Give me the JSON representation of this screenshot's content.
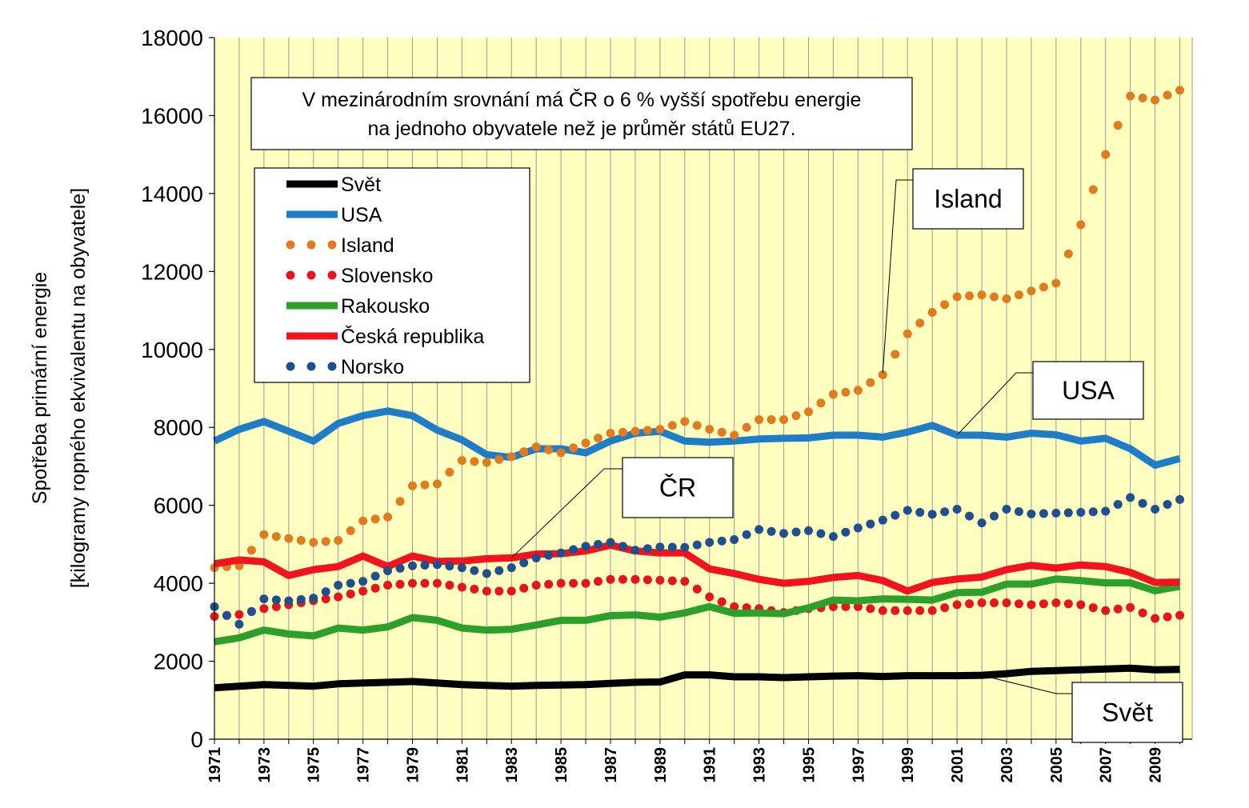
{
  "chart_data": {
    "type": "line",
    "title": "",
    "xlabel": "",
    "ylabel_lines": [
      "Spotřeba primární energie",
      "[kilogramy ropného ekvivalentu na obyvatele]"
    ],
    "ylim": [
      0,
      18000
    ],
    "yticks": [
      0,
      2000,
      4000,
      6000,
      8000,
      10000,
      12000,
      14000,
      16000,
      18000
    ],
    "x": [
      1971,
      1972,
      1973,
      1974,
      1975,
      1976,
      1977,
      1978,
      1979,
      1980,
      1981,
      1982,
      1983,
      1984,
      1985,
      1986,
      1987,
      1988,
      1989,
      1990,
      1991,
      1992,
      1993,
      1994,
      1995,
      1996,
      1997,
      1998,
      1999,
      2000,
      2001,
      2002,
      2003,
      2004,
      2005,
      2006,
      2007,
      2008,
      2009,
      2010
    ],
    "xtick_labels": [
      "1971",
      "1973",
      "1975",
      "1977",
      "1979",
      "1981",
      "1983",
      "1985",
      "1987",
      "1989",
      "1991",
      "1993",
      "1995",
      "1997",
      "1999",
      "2001",
      "2003",
      "2005",
      "2007",
      "2009"
    ],
    "grid": "vertical",
    "legend_position": "upper-left",
    "annotation": "V mezinárodním srovnání má ČR o 6 % vyšší spotřebu energie na jednoho obyvatele než je průměr států EU27.",
    "annotation_lines": [
      "V mezinárodním srovnání má ČR o 6 % vyšší spotřebu energie",
      "na jednoho obyvatele než je průměr států EU27."
    ],
    "series": [
      {
        "name": "Svět",
        "color": "#000000",
        "style": "solid",
        "values": [
          1320,
          1360,
          1400,
          1380,
          1360,
          1420,
          1440,
          1460,
          1480,
          1440,
          1400,
          1380,
          1360,
          1380,
          1390,
          1400,
          1430,
          1460,
          1470,
          1650,
          1650,
          1600,
          1600,
          1580,
          1600,
          1620,
          1630,
          1610,
          1630,
          1630,
          1630,
          1640,
          1680,
          1740,
          1760,
          1780,
          1800,
          1820,
          1780,
          1790
        ]
      },
      {
        "name": "USA",
        "color": "#1f7cc7",
        "style": "solid",
        "values": [
          7650,
          7950,
          8150,
          7900,
          7650,
          8100,
          8300,
          8420,
          8300,
          7930,
          7680,
          7300,
          7230,
          7450,
          7450,
          7350,
          7650,
          7850,
          7900,
          7650,
          7620,
          7650,
          7700,
          7720,
          7730,
          7800,
          7800,
          7750,
          7880,
          8050,
          7800,
          7800,
          7750,
          7850,
          7810,
          7650,
          7720,
          7450,
          7030,
          7200
        ]
      },
      {
        "name": "Island",
        "color": "#e07b1f",
        "style": "dotted",
        "values": [
          4400,
          4450,
          5250,
          5150,
          5050,
          5100,
          5600,
          5700,
          6500,
          6550,
          7150,
          7100,
          7250,
          7500,
          7350,
          7600,
          7850,
          7900,
          7950,
          8150,
          7950,
          7800,
          8200,
          8200,
          8400,
          8850,
          8950,
          9350,
          10400,
          10950,
          11350,
          11400,
          11300,
          11500,
          11700,
          13200,
          15000,
          16500,
          16400,
          16650
        ]
      },
      {
        "name": "Slovensko",
        "color": "#e8141c",
        "style": "dotted",
        "values": [
          3150,
          3200,
          3350,
          3450,
          3550,
          3650,
          3800,
          3950,
          4000,
          4000,
          3900,
          3800,
          3800,
          3950,
          4000,
          4000,
          4100,
          4100,
          4080,
          4050,
          3650,
          3400,
          3350,
          3250,
          3350,
          3400,
          3400,
          3300,
          3300,
          3300,
          3450,
          3500,
          3500,
          3450,
          3500,
          3450,
          3300,
          3380,
          3100,
          3180
        ]
      },
      {
        "name": "Rakousko",
        "color": "#2da02c",
        "style": "solid",
        "values": [
          2500,
          2600,
          2800,
          2700,
          2650,
          2850,
          2800,
          2880,
          3120,
          3050,
          2850,
          2800,
          2820,
          2930,
          3050,
          3050,
          3170,
          3190,
          3130,
          3240,
          3400,
          3230,
          3240,
          3220,
          3370,
          3570,
          3550,
          3600,
          3590,
          3570,
          3760,
          3770,
          3980,
          3980,
          4110,
          4070,
          4010,
          4010,
          3810,
          3920
        ]
      },
      {
        "name": "Česká republika",
        "color": "#f2141c",
        "style": "solid",
        "values": [
          4500,
          4600,
          4550,
          4200,
          4350,
          4430,
          4700,
          4430,
          4700,
          4560,
          4570,
          4630,
          4650,
          4750,
          4760,
          4830,
          4980,
          4830,
          4780,
          4780,
          4370,
          4250,
          4100,
          4000,
          4050,
          4150,
          4200,
          4070,
          3800,
          4020,
          4110,
          4160,
          4350,
          4460,
          4390,
          4470,
          4430,
          4280,
          4020,
          4030
        ]
      },
      {
        "name": "Norsko",
        "color": "#1f4f8f",
        "style": "dotted",
        "values": [
          3400,
          2950,
          3600,
          3550,
          3620,
          3950,
          4050,
          4320,
          4450,
          4480,
          4400,
          4250,
          4400,
          4650,
          4780,
          4950,
          5050,
          4850,
          4930,
          4920,
          5050,
          5120,
          5380,
          5280,
          5350,
          5200,
          5420,
          5620,
          5870,
          5770,
          5900,
          5550,
          5900,
          5780,
          5800,
          5820,
          5850,
          6200,
          5900,
          6150
        ]
      }
    ],
    "callouts": [
      {
        "label": "Island",
        "year": 1998,
        "value": 9400
      },
      {
        "label": "USA",
        "year": 2001,
        "value": 7800
      },
      {
        "label": "ČR",
        "year": 1983,
        "value": 4650
      },
      {
        "label": "Svět",
        "year": 2002,
        "value": 1640
      }
    ]
  }
}
